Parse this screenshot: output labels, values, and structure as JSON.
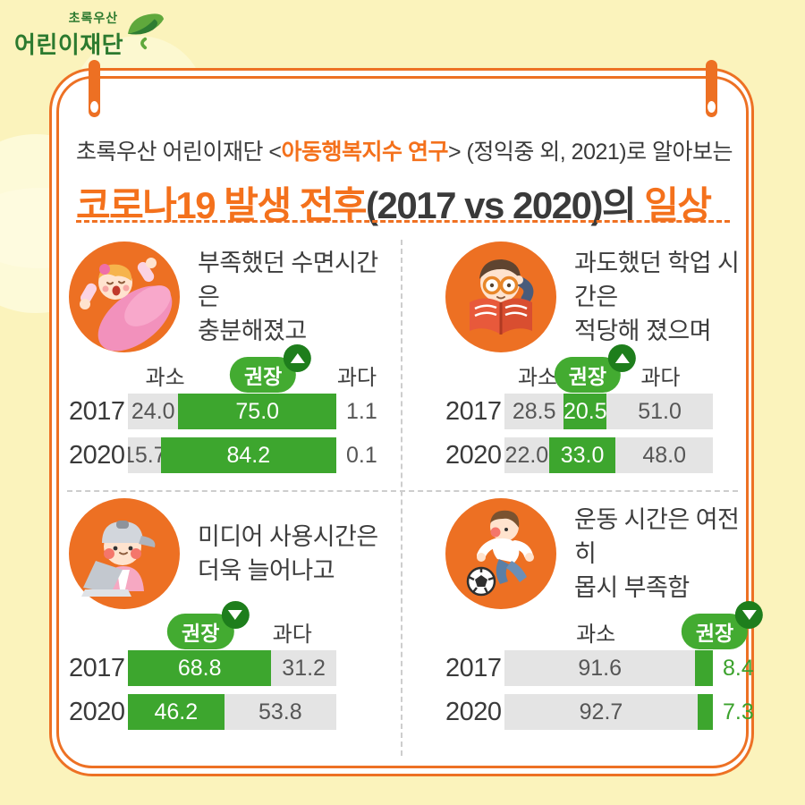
{
  "logo": {
    "line1": "초록우산",
    "line2": "어린이재단",
    "icon": "green-umbrella-leaf-icon"
  },
  "header": {
    "subtitle": {
      "prefix": "초록우산 어린이재단 <",
      "highlight": "아동행복지수 연구",
      "suffix": "> (정익중 외, 2021)로 알아보는"
    },
    "title": {
      "highlight1": "코로나19 발생 전후",
      "plain": "(2017 vs 2020)의 ",
      "highlight2": "일상"
    }
  },
  "colors": {
    "background": "#FBF3BC",
    "card": "#FFFFFF",
    "accent_orange": "#ED7124",
    "title_orange": "#F4711C",
    "avatar_orange": "#ED7023",
    "bar_green": "#3DA62E",
    "pill_green": "#43AB31",
    "pill_badge_green": "#1E7E1C",
    "bar_gray": "#E4E4E4",
    "text_dark": "#3A3A3A",
    "outside_green_text": "#3BA22C",
    "divider_gray": "#CDCDCD"
  },
  "chart_data": [
    {
      "type": "bar",
      "orientation": "horizontal-stacked",
      "id": "sleep",
      "icon": "sleeping-child-icon",
      "caption": [
        "부족했던 수면시간은",
        "충분해졌고"
      ],
      "categories": [
        "2017",
        "2020"
      ],
      "legend": [
        {
          "label": "과소",
          "type": "text",
          "left_pct": 17
        },
        {
          "label": "권장",
          "type": "pill",
          "trend": "up",
          "left_pct": 64
        },
        {
          "label": "과다",
          "type": "text",
          "left_pct": 109
        }
      ],
      "rows": [
        {
          "year": "2017",
          "parts": [
            {
              "label": "과소",
              "value": 24.0,
              "text": "24.0",
              "color": "gray",
              "bar": true,
              "text_pos": "in"
            },
            {
              "label": "권장",
              "value": 75.0,
              "text": "75.0",
              "color": "green",
              "bar": true,
              "text_pos": "in"
            },
            {
              "label": "과다",
              "value": 1.1,
              "text": "1.1",
              "color": "none",
              "bar": false,
              "text_pos": "out",
              "text_color": "dark"
            }
          ]
        },
        {
          "year": "2020",
          "parts": [
            {
              "label": "과소",
              "value": 15.7,
              "text": "15.7",
              "color": "gray",
              "bar": true,
              "text_pos": "in"
            },
            {
              "label": "권장",
              "value": 84.2,
              "text": "84.2",
              "color": "green",
              "bar": true,
              "text_pos": "in"
            },
            {
              "label": "과다",
              "value": 0.1,
              "text": "0.1",
              "color": "none",
              "bar": false,
              "text_pos": "out",
              "text_color": "dark"
            }
          ]
        }
      ]
    },
    {
      "type": "bar",
      "orientation": "horizontal-stacked",
      "id": "study",
      "icon": "reading-child-icon",
      "caption": [
        "과도했던 학업 시간은",
        "적당해 졌으며"
      ],
      "categories": [
        "2017",
        "2020"
      ],
      "legend": [
        {
          "label": "과소",
          "type": "text",
          "left_pct": 15
        },
        {
          "label": "권장",
          "type": "pill",
          "trend": "up",
          "left_pct": 39
        },
        {
          "label": "과다",
          "type": "text",
          "left_pct": 74
        }
      ],
      "rows": [
        {
          "year": "2017",
          "parts": [
            {
              "label": "과소",
              "value": 28.5,
              "text": "28.5",
              "color": "gray",
              "bar": true,
              "text_pos": "in"
            },
            {
              "label": "권장",
              "value": 20.5,
              "text": "20.5",
              "color": "green",
              "bar": true,
              "text_pos": "in"
            },
            {
              "label": "과다",
              "value": 51.0,
              "text": "51.0",
              "color": "gray",
              "bar": true,
              "text_pos": "in"
            }
          ]
        },
        {
          "year": "2020",
          "parts": [
            {
              "label": "과소",
              "value": 22.0,
              "text": "22.0",
              "color": "gray",
              "bar": true,
              "text_pos": "in"
            },
            {
              "label": "권장",
              "value": 33.0,
              "text": "33.0",
              "color": "green",
              "bar": true,
              "text_pos": "in"
            },
            {
              "label": "과다",
              "value": 48.0,
              "text": "48.0",
              "color": "gray",
              "bar": true,
              "text_pos": "in"
            }
          ]
        }
      ]
    },
    {
      "type": "bar",
      "orientation": "horizontal-stacked",
      "id": "media",
      "icon": "laptop-child-icon",
      "caption": [
        "미디어 사용시간은",
        "더욱 늘어나고"
      ],
      "categories": [
        "2017",
        "2020"
      ],
      "legend": [
        {
          "label": "권장",
          "type": "pill",
          "trend": "down",
          "left_pct": 34
        },
        {
          "label": "과다",
          "type": "text",
          "left_pct": 78
        }
      ],
      "rows": [
        {
          "year": "2017",
          "parts": [
            {
              "label": "권장",
              "value": 68.8,
              "text": "68.8",
              "color": "green",
              "bar": true,
              "text_pos": "in"
            },
            {
              "label": "과다",
              "value": 31.2,
              "text": "31.2",
              "color": "gray",
              "bar": true,
              "text_pos": "in"
            }
          ]
        },
        {
          "year": "2020",
          "parts": [
            {
              "label": "권장",
              "value": 46.2,
              "text": "46.2",
              "color": "green",
              "bar": true,
              "text_pos": "in"
            },
            {
              "label": "과다",
              "value": 53.8,
              "text": "53.8",
              "color": "gray",
              "bar": true,
              "text_pos": "in"
            }
          ]
        }
      ]
    },
    {
      "type": "bar",
      "orientation": "horizontal-stacked",
      "id": "exercise",
      "icon": "soccer-child-icon",
      "caption": [
        "운동 시간은 여전히",
        "몹시 부족함"
      ],
      "categories": [
        "2017",
        "2020"
      ],
      "legend": [
        {
          "label": "과소",
          "type": "text",
          "left_pct": 43
        },
        {
          "label": "권장",
          "type": "pill",
          "trend": "down",
          "left_pct": 100
        }
      ],
      "rows": [
        {
          "year": "2017",
          "parts": [
            {
              "label": "과소",
              "value": 91.6,
              "text": "91.6",
              "color": "gray",
              "bar": true,
              "text_pos": "in"
            },
            {
              "label": "권장",
              "value": 8.4,
              "text": "8.4",
              "color": "green",
              "bar": true,
              "text_pos": "out",
              "text_color": "green"
            }
          ]
        },
        {
          "year": "2020",
          "parts": [
            {
              "label": "과소",
              "value": 92.7,
              "text": "92.7",
              "color": "gray",
              "bar": true,
              "text_pos": "in"
            },
            {
              "label": "권장",
              "value": 7.3,
              "text": "7.3",
              "color": "green",
              "bar": true,
              "text_pos": "out",
              "text_color": "green"
            }
          ]
        }
      ]
    }
  ]
}
